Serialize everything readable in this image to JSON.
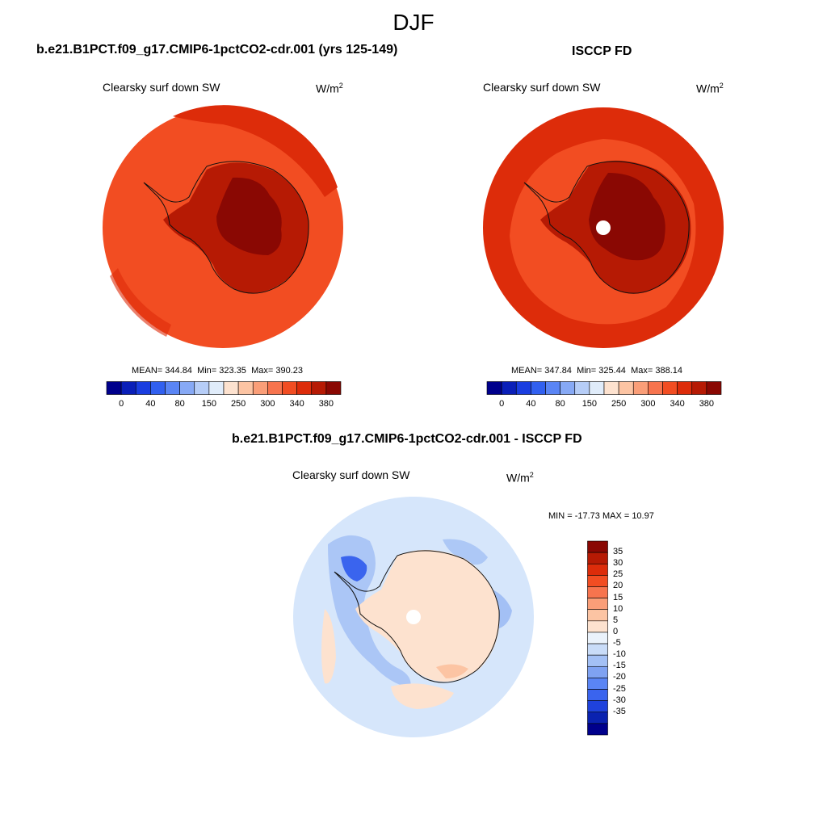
{
  "title": "DJF",
  "panels": {
    "model": {
      "title": "b.e21.B1PCT.f09_g17.CMIP6-1pctCO2-cdr.001 (yrs 125-149)",
      "variable": "Clearsky surf down SW",
      "units_base": "W/m",
      "units_exp": "2",
      "mean_label": "MEAN=",
      "mean": "344.84",
      "min_label": "Min=",
      "min": "323.35",
      "max_label": "Max=",
      "max": "390.23"
    },
    "obs": {
      "title": "ISCCP FD",
      "variable": "Clearsky surf down SW",
      "units_base": "W/m",
      "units_exp": "2",
      "mean_label": "MEAN=",
      "mean": "347.84",
      "min_label": "Min=",
      "min": "325.44",
      "max_label": "Max=",
      "max": "388.14"
    },
    "diff": {
      "title": "b.e21.B1PCT.f09_g17.CMIP6-1pctCO2-cdr.001 - ISCCP FD",
      "variable": "Clearsky surf down SW",
      "units_base": "W/m",
      "units_exp": "2",
      "minmax": "MIN = -17.73 MAX =  10.97"
    }
  },
  "abs_colorbar": {
    "colors": [
      "#00008c",
      "#0a1fb8",
      "#1a3de0",
      "#3160f0",
      "#5a85f5",
      "#87a9f5",
      "#b6cdf7",
      "#e0ecfa",
      "#fde2cf",
      "#fcc4a3",
      "#fa9e78",
      "#f7744e",
      "#f24d22",
      "#dd2c0a",
      "#b61a04",
      "#8a0803"
    ],
    "tick_labels": [
      "0",
      "40",
      "80",
      "150",
      "250",
      "300",
      "340",
      "380"
    ]
  },
  "diff_colorbar": {
    "colors": [
      "#8a0803",
      "#b61a04",
      "#dd2c0a",
      "#f24d22",
      "#f7744e",
      "#fa9e78",
      "#fcc4a3",
      "#fde2cf",
      "#eaf2fb",
      "#c9dcf8",
      "#a3c0f5",
      "#7fa2f2",
      "#5a85f5",
      "#3a64ee",
      "#1f42dc",
      "#0a22b0",
      "#00008c"
    ],
    "tick_labels": [
      "35",
      "30",
      "25",
      "20",
      "15",
      "10",
      "5",
      "0",
      "-5",
      "-10",
      "-15",
      "-20",
      "-25",
      "-30",
      "-35"
    ]
  },
  "colors": {
    "ocean_abs": "#f24d22",
    "ring_abs": "#dd2c0a",
    "ice_mid": "#b61a04",
    "ice_high": "#8a0803",
    "diff_bg": "#d6e6fb",
    "diff_pos": "#fde2cf",
    "diff_neg_mid": "#a3c0f5",
    "diff_neg_strong": "#3a64ee"
  }
}
